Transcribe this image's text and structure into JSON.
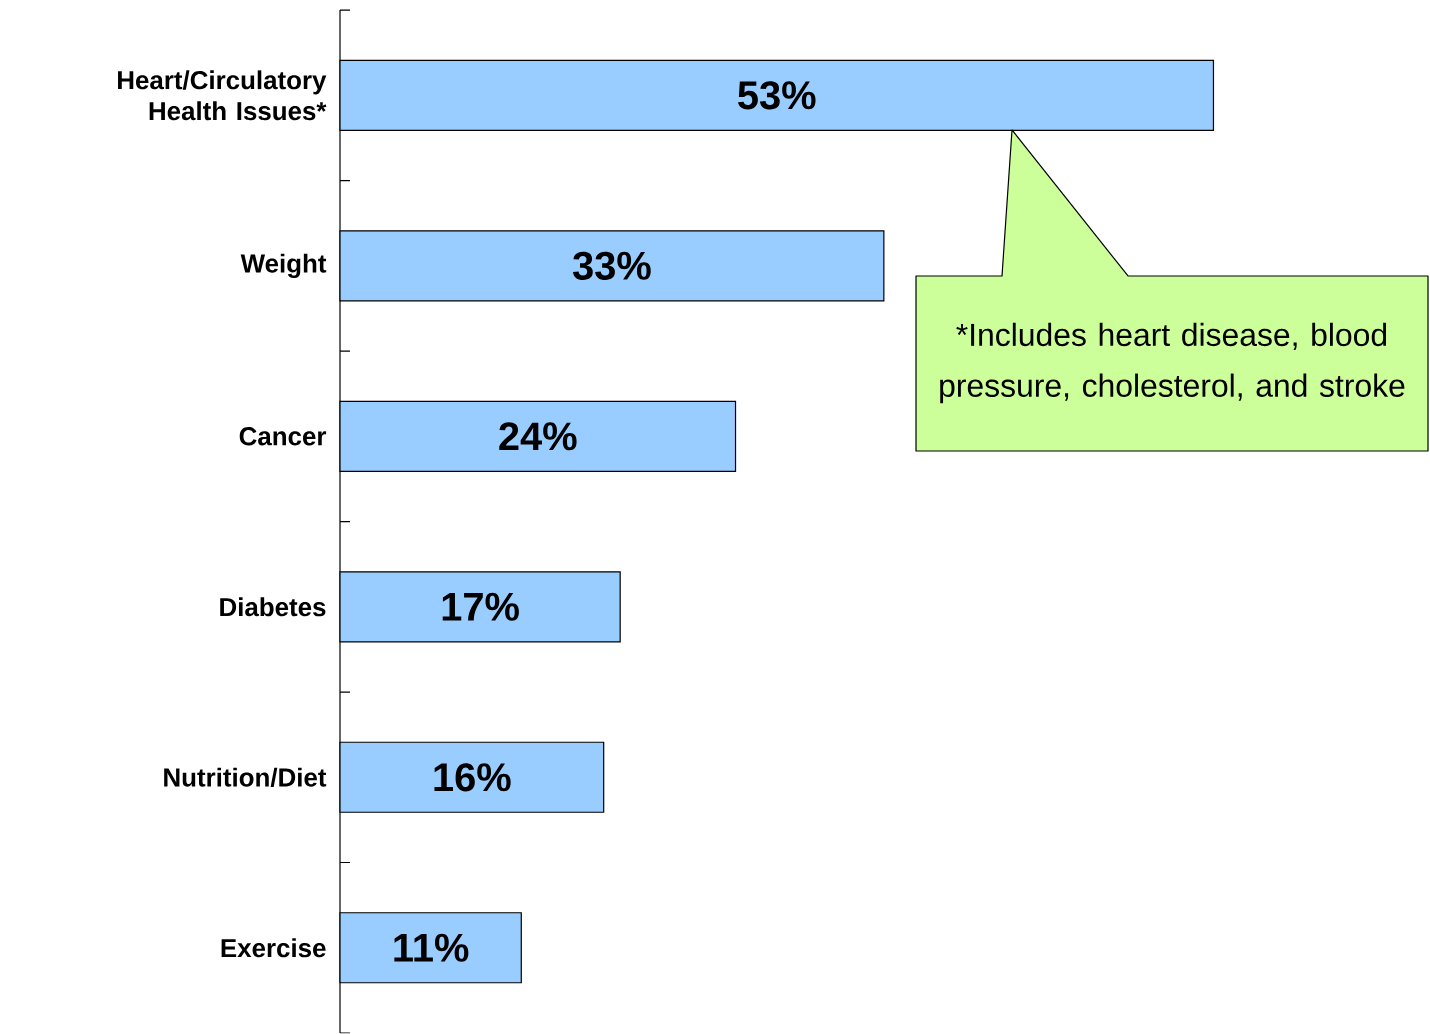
{
  "chart_data": {
    "type": "bar",
    "orientation": "horizontal",
    "categories": [
      "Heart/Circulatory Health Issues*",
      "Weight",
      "Cancer",
      "Diabetes",
      "Nutrition/Diet",
      "Exercise"
    ],
    "values": [
      53,
      33,
      24,
      17,
      16,
      11
    ],
    "value_labels": [
      "53%",
      "33%",
      "24%",
      "17%",
      "16%",
      "11%"
    ],
    "color": "#99ccff",
    "annotations": [
      "*Includes heart disease, blood pressure, cholesterol, and stroke"
    ]
  }
}
